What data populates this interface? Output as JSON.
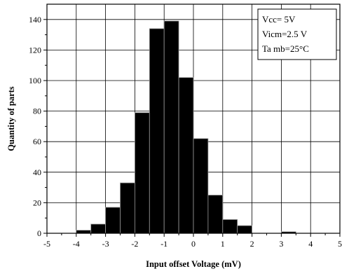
{
  "chart_data": {
    "type": "bar",
    "title": "",
    "xlabel": "Input offset Voltage (mV)",
    "ylabel": "Quantity of parts",
    "xlim": [
      -5,
      5
    ],
    "ylim": [
      0,
      150
    ],
    "x_ticks": [
      -5,
      -4,
      -3,
      -2,
      -1,
      0,
      1,
      2,
      3,
      4,
      5
    ],
    "y_ticks": [
      0,
      20,
      40,
      60,
      80,
      100,
      120,
      140
    ],
    "grid": true,
    "bar_color": "#000000",
    "bin_width": 0.5,
    "bins": [
      {
        "x0": -4.0,
        "value": 2
      },
      {
        "x0": -3.5,
        "value": 6
      },
      {
        "x0": -3.0,
        "value": 17
      },
      {
        "x0": -2.5,
        "value": 33
      },
      {
        "x0": -2.0,
        "value": 79
      },
      {
        "x0": -1.5,
        "value": 134
      },
      {
        "x0": -1.0,
        "value": 139
      },
      {
        "x0": -0.5,
        "value": 102
      },
      {
        "x0": 0.0,
        "value": 62
      },
      {
        "x0": 0.5,
        "value": 25
      },
      {
        "x0": 1.0,
        "value": 9
      },
      {
        "x0": 1.5,
        "value": 5
      },
      {
        "x0": 3.0,
        "value": 1
      }
    ],
    "legend": {
      "placement": "top-right",
      "lines": [
        "Vcc= 5V",
        "Vicm=2.5 V",
        "Ta mb=25°C"
      ]
    }
  }
}
